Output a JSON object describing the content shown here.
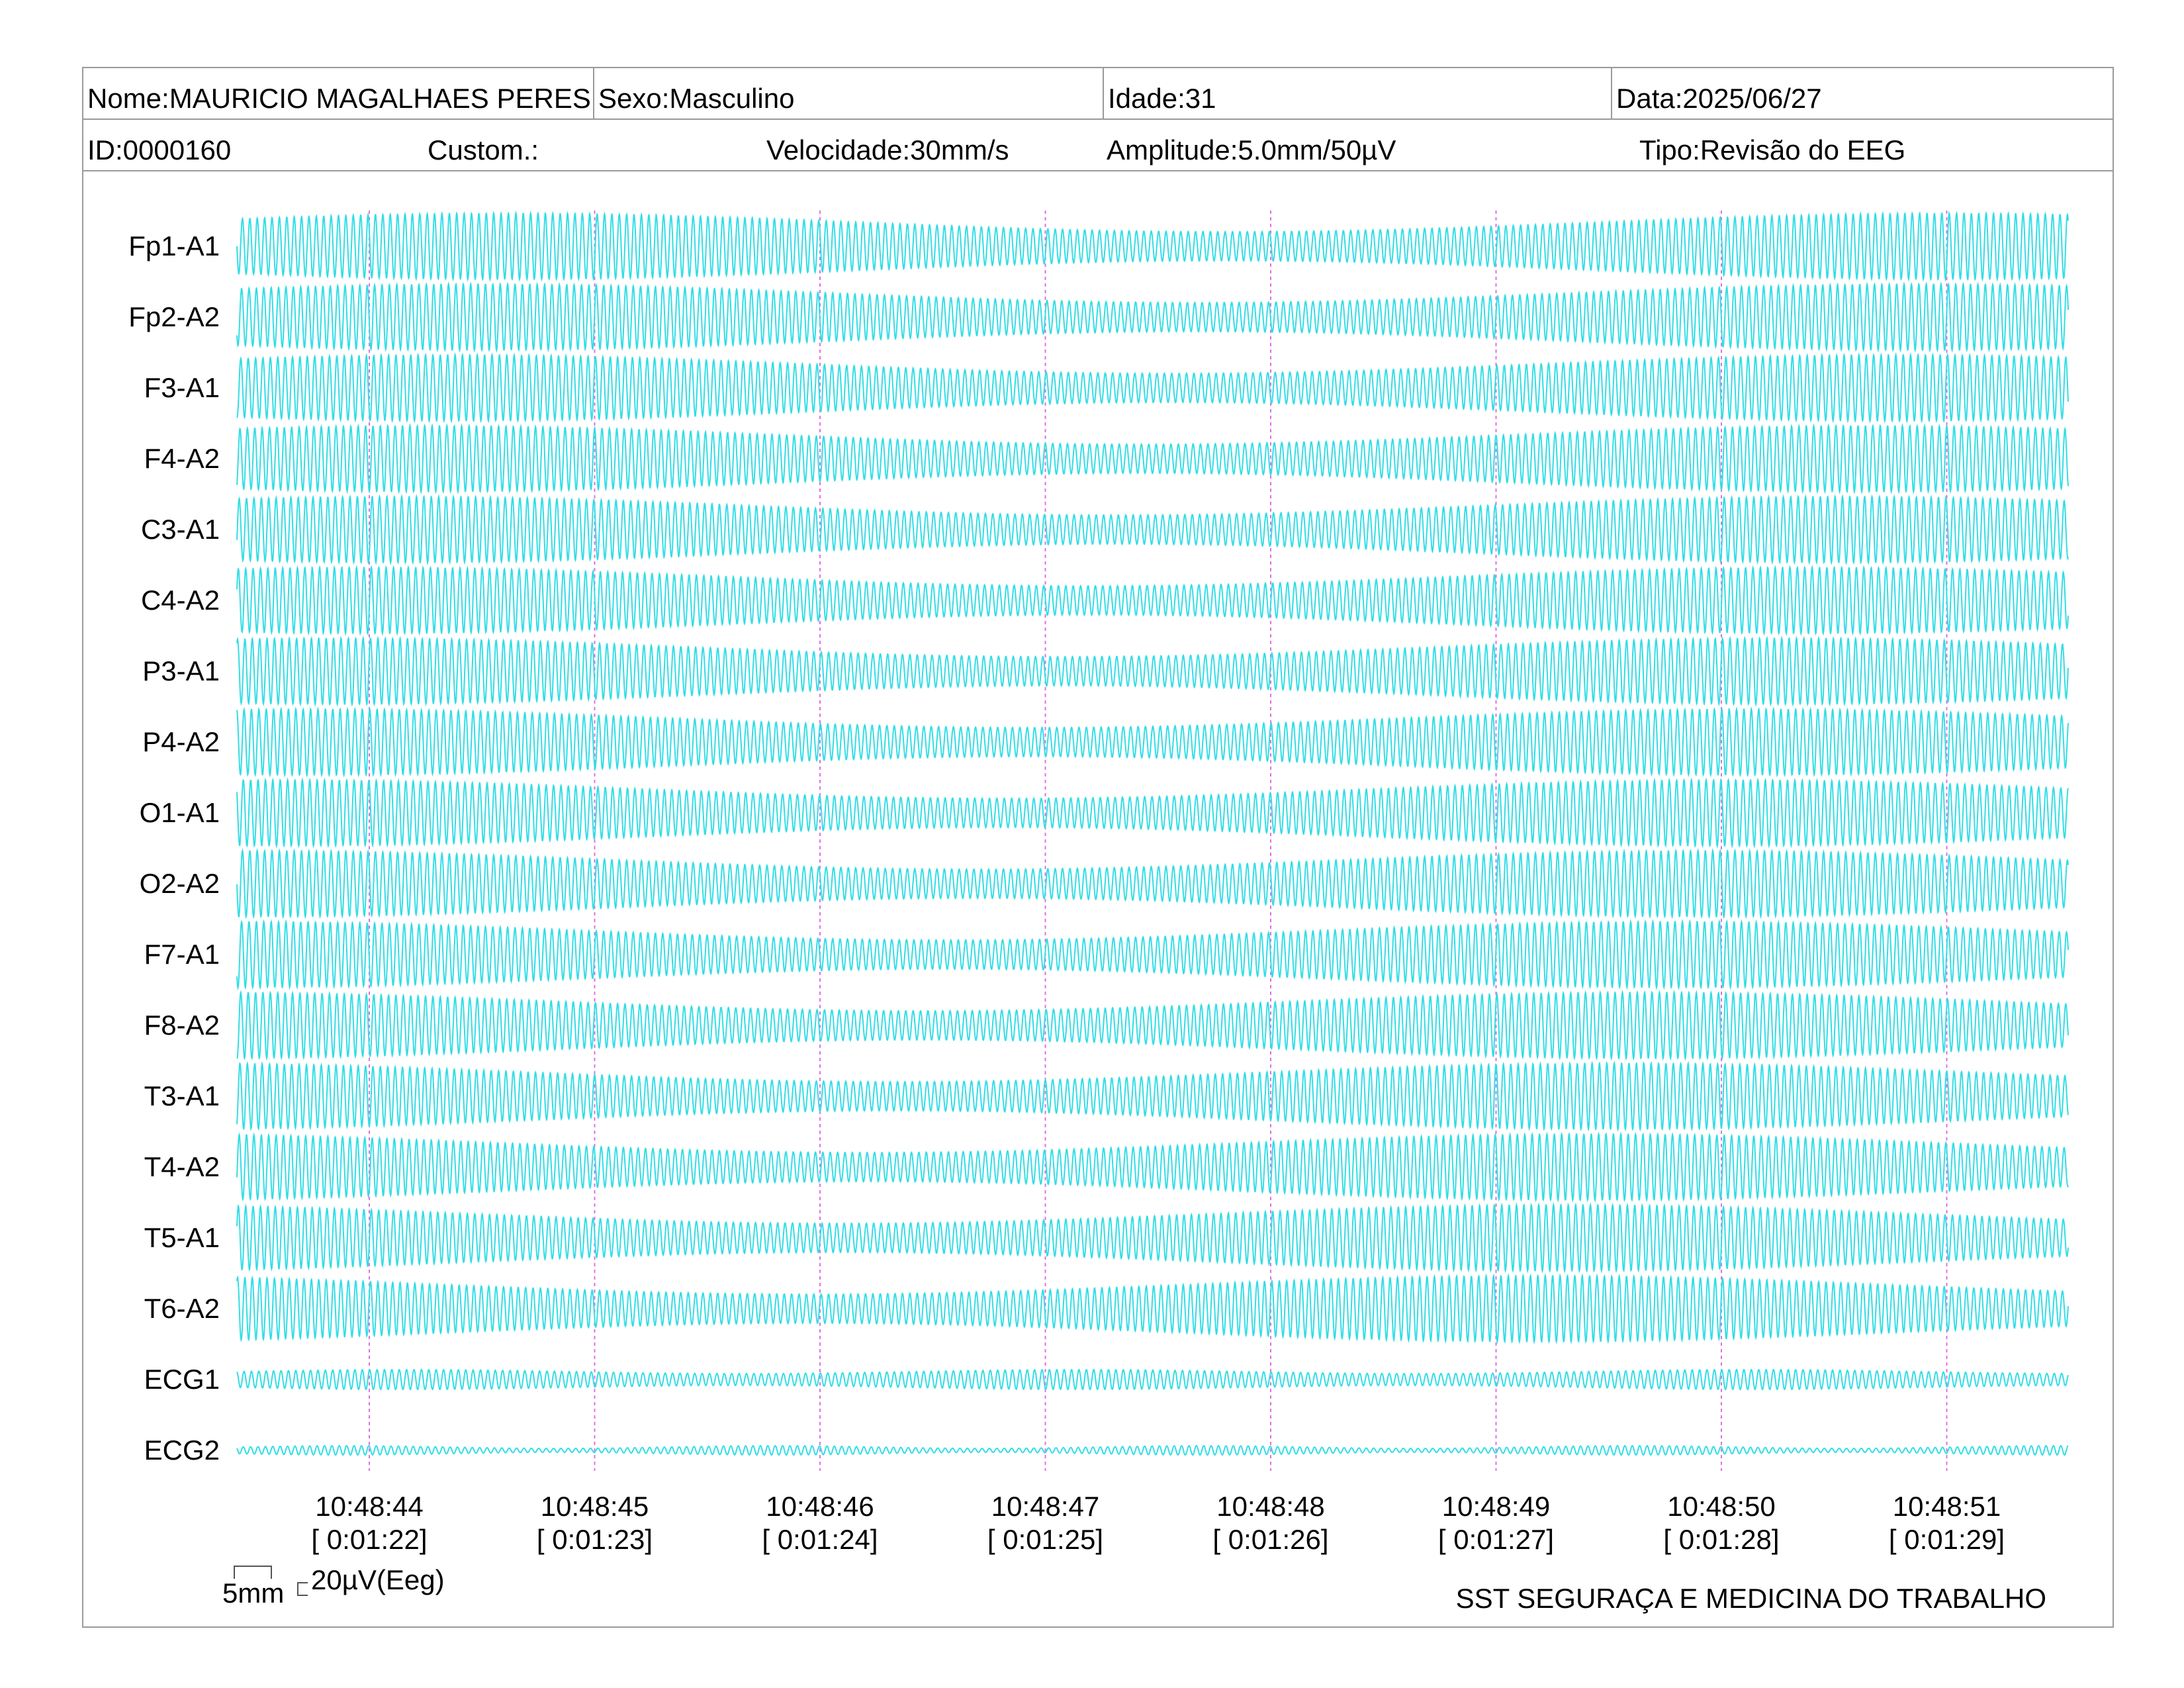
{
  "header": {
    "nome": "Nome:MAURICIO MAGALHAES PERES",
    "sexo": "Sexo:Masculino",
    "idade": "Idade:31",
    "data": "Data:2025/06/27",
    "id": "ID:0000160",
    "custom": "Custom.:",
    "velocidade": "Velocidade:30mm/s",
    "amplitude": "Amplitude:5.0mm/50µV",
    "tipo": "Tipo:Revisão do EEG"
  },
  "footer": {
    "scale_mm": "5mm",
    "scale_uv": "20µV(Eeg)",
    "company": "SST SEGURAÇA E MEDICINA DO TRABALHO"
  },
  "colors": {
    "trace": "#33dde5",
    "marker": "#e070e0",
    "border": "#9a9a9a"
  },
  "chart_data": {
    "type": "line",
    "channels": [
      "Fp1-A1",
      "Fp2-A2",
      "F3-A1",
      "F4-A2",
      "C3-A1",
      "C4-A2",
      "P3-A1",
      "P4-A2",
      "O1-A1",
      "O2-A2",
      "F7-A1",
      "F8-A2",
      "T3-A1",
      "T4-A2",
      "T5-A1",
      "T6-A2",
      "ECG1",
      "ECG2"
    ],
    "time_ticks": [
      {
        "clock": "10:48:44",
        "elapsed": "[ 0:01:22]"
      },
      {
        "clock": "10:48:45",
        "elapsed": "[ 0:01:23]"
      },
      {
        "clock": "10:48:46",
        "elapsed": "[ 0:01:24]"
      },
      {
        "clock": "10:48:47",
        "elapsed": "[ 0:01:25]"
      },
      {
        "clock": "10:48:48",
        "elapsed": "[ 0:01:26]"
      },
      {
        "clock": "10:48:49",
        "elapsed": "[ 0:01:27]"
      },
      {
        "clock": "10:48:50",
        "elapsed": "[ 0:01:28]"
      },
      {
        "clock": "10:48:51",
        "elapsed": "[ 0:01:29]"
      }
    ],
    "dominant_frequency_hz": 10,
    "grid": false
  }
}
